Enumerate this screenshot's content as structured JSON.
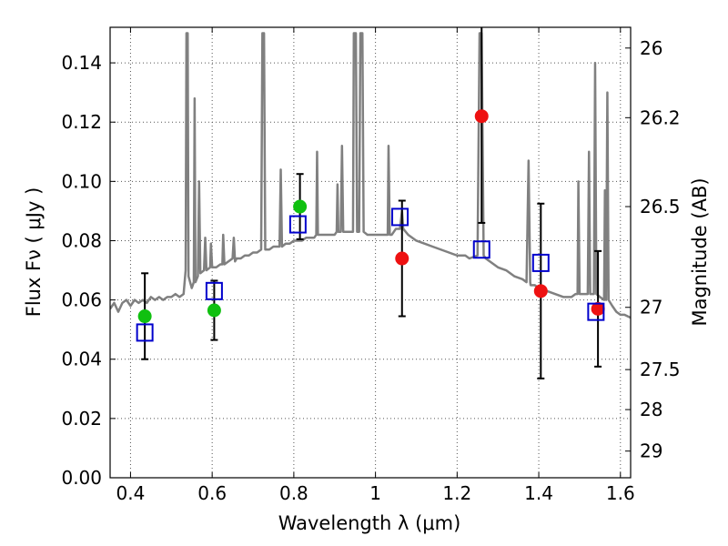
{
  "chart_data": {
    "type": "scatter",
    "title": "",
    "xlabel": "Wavelength  λ (μm)",
    "ylabel": "Flux  Fν  ( μJy )",
    "y2label": "Magnitude (AB)",
    "xlim": [
      0.35,
      1.625
    ],
    "ylim": [
      0.0,
      0.152
    ],
    "grid": true,
    "x_ticks": [
      0.4,
      0.6,
      0.8,
      1.0,
      1.2,
      1.4,
      1.6
    ],
    "x_tick_labels": [
      "0.4",
      "0.6",
      "0.8",
      "1",
      "1.2",
      "1.4",
      "1.6"
    ],
    "y_ticks": [
      0.0,
      0.02,
      0.04,
      0.06,
      0.08,
      0.1,
      0.12,
      0.14
    ],
    "y_tick_labels": [
      "0.00",
      "0.02",
      "0.04",
      "0.06",
      "0.08",
      "0.10",
      "0.12",
      "0.14"
    ],
    "y2_ticks": [
      {
        "label": "26",
        "flux": 0.145
      },
      {
        "label": "26.2",
        "flux": 0.1215
      },
      {
        "label": "26.5",
        "flux": 0.0915
      },
      {
        "label": "27",
        "flux": 0.0575
      },
      {
        "label": "27.5",
        "flux": 0.0365
      },
      {
        "label": "28",
        "flux": 0.023
      },
      {
        "label": "29",
        "flux": 0.009
      }
    ],
    "colors": {
      "model": "#808080",
      "green": "#10c010",
      "red": "#ee1111",
      "box": "#0000cc",
      "errorbar": "#000000",
      "grid": "#555555"
    },
    "series": [
      {
        "kind": "line",
        "color": "#808080",
        "points": [
          [
            0.35,
            0.057
          ],
          [
            0.36,
            0.059
          ],
          [
            0.37,
            0.056
          ],
          [
            0.38,
            0.059
          ],
          [
            0.39,
            0.06
          ],
          [
            0.4,
            0.058
          ],
          [
            0.41,
            0.06
          ],
          [
            0.42,
            0.059
          ],
          [
            0.43,
            0.06
          ],
          [
            0.44,
            0.059
          ],
          [
            0.45,
            0.061
          ],
          [
            0.46,
            0.06
          ],
          [
            0.47,
            0.061
          ],
          [
            0.48,
            0.06
          ],
          [
            0.49,
            0.061
          ],
          [
            0.5,
            0.061
          ],
          [
            0.51,
            0.062
          ],
          [
            0.52,
            0.061
          ],
          [
            0.53,
            0.062
          ],
          [
            0.535,
            0.07
          ],
          [
            0.537,
            0.15
          ],
          [
            0.54,
            0.15
          ],
          [
            0.542,
            0.068
          ],
          [
            0.55,
            0.064
          ],
          [
            0.555,
            0.066
          ],
          [
            0.557,
            0.128
          ],
          [
            0.559,
            0.066
          ],
          [
            0.565,
            0.068
          ],
          [
            0.568,
            0.1
          ],
          [
            0.571,
            0.069
          ],
          [
            0.58,
            0.07
          ],
          [
            0.583,
            0.081
          ],
          [
            0.586,
            0.07
          ],
          [
            0.595,
            0.071
          ],
          [
            0.597,
            0.079
          ],
          [
            0.6,
            0.071
          ],
          [
            0.61,
            0.071
          ],
          [
            0.62,
            0.072
          ],
          [
            0.625,
            0.072
          ],
          [
            0.627,
            0.082
          ],
          [
            0.63,
            0.072
          ],
          [
            0.64,
            0.073
          ],
          [
            0.65,
            0.074
          ],
          [
            0.653,
            0.081
          ],
          [
            0.656,
            0.073
          ],
          [
            0.66,
            0.074
          ],
          [
            0.67,
            0.074
          ],
          [
            0.68,
            0.075
          ],
          [
            0.69,
            0.075
          ],
          [
            0.7,
            0.076
          ],
          [
            0.71,
            0.076
          ],
          [
            0.72,
            0.077
          ],
          [
            0.723,
            0.15
          ],
          [
            0.727,
            0.15
          ],
          [
            0.73,
            0.077
          ],
          [
            0.74,
            0.077
          ],
          [
            0.75,
            0.078
          ],
          [
            0.76,
            0.078
          ],
          [
            0.765,
            0.078
          ],
          [
            0.768,
            0.104
          ],
          [
            0.771,
            0.078
          ],
          [
            0.78,
            0.079
          ],
          [
            0.79,
            0.079
          ],
          [
            0.8,
            0.08
          ],
          [
            0.81,
            0.08
          ],
          [
            0.82,
            0.08
          ],
          [
            0.83,
            0.081
          ],
          [
            0.84,
            0.081
          ],
          [
            0.85,
            0.081
          ],
          [
            0.855,
            0.082
          ],
          [
            0.857,
            0.11
          ],
          [
            0.859,
            0.082
          ],
          [
            0.87,
            0.082
          ],
          [
            0.88,
            0.082
          ],
          [
            0.89,
            0.082
          ],
          [
            0.9,
            0.082
          ],
          [
            0.905,
            0.083
          ],
          [
            0.907,
            0.099
          ],
          [
            0.909,
            0.083
          ],
          [
            0.91,
            0.083
          ],
          [
            0.915,
            0.083
          ],
          [
            0.918,
            0.112
          ],
          [
            0.921,
            0.083
          ],
          [
            0.93,
            0.083
          ],
          [
            0.94,
            0.083
          ],
          [
            0.945,
            0.083
          ],
          [
            0.947,
            0.15
          ],
          [
            0.952,
            0.15
          ],
          [
            0.955,
            0.083
          ],
          [
            0.96,
            0.083
          ],
          [
            0.963,
            0.15
          ],
          [
            0.968,
            0.15
          ],
          [
            0.971,
            0.083
          ],
          [
            0.98,
            0.082
          ],
          [
            0.99,
            0.082
          ],
          [
            1.0,
            0.082
          ],
          [
            1.01,
            0.082
          ],
          [
            1.02,
            0.082
          ],
          [
            1.03,
            0.082
          ],
          [
            1.032,
            0.112
          ],
          [
            1.035,
            0.082
          ],
          [
            1.04,
            0.082
          ],
          [
            1.05,
            0.084
          ],
          [
            1.06,
            0.084
          ],
          [
            1.065,
            0.09
          ],
          [
            1.068,
            0.084
          ],
          [
            1.08,
            0.082
          ],
          [
            1.09,
            0.081
          ],
          [
            1.1,
            0.08
          ],
          [
            1.12,
            0.079
          ],
          [
            1.14,
            0.078
          ],
          [
            1.16,
            0.077
          ],
          [
            1.18,
            0.076
          ],
          [
            1.2,
            0.075
          ],
          [
            1.22,
            0.075
          ],
          [
            1.23,
            0.074
          ],
          [
            1.25,
            0.075
          ],
          [
            1.255,
            0.15
          ],
          [
            1.26,
            0.15
          ],
          [
            1.265,
            0.075
          ],
          [
            1.27,
            0.074
          ],
          [
            1.28,
            0.073
          ],
          [
            1.3,
            0.071
          ],
          [
            1.32,
            0.07
          ],
          [
            1.34,
            0.068
          ],
          [
            1.36,
            0.067
          ],
          [
            1.37,
            0.066
          ],
          [
            1.375,
            0.107
          ],
          [
            1.379,
            0.066
          ],
          [
            1.38,
            0.065
          ],
          [
            1.39,
            0.065
          ],
          [
            1.4,
            0.064
          ],
          [
            1.42,
            0.063
          ],
          [
            1.44,
            0.062
          ],
          [
            1.46,
            0.061
          ],
          [
            1.48,
            0.061
          ],
          [
            1.49,
            0.062
          ],
          [
            1.495,
            0.062
          ],
          [
            1.497,
            0.1
          ],
          [
            1.5,
            0.062
          ],
          [
            1.51,
            0.062
          ],
          [
            1.52,
            0.062
          ],
          [
            1.523,
            0.11
          ],
          [
            1.526,
            0.062
          ],
          [
            1.53,
            0.062
          ],
          [
            1.535,
            0.062
          ],
          [
            1.538,
            0.14
          ],
          [
            1.541,
            0.062
          ],
          [
            1.55,
            0.061
          ],
          [
            1.56,
            0.06
          ],
          [
            1.562,
            0.097
          ],
          [
            1.565,
            0.06
          ],
          [
            1.568,
            0.13
          ],
          [
            1.571,
            0.06
          ],
          [
            1.58,
            0.058
          ],
          [
            1.59,
            0.056
          ],
          [
            1.6,
            0.055
          ],
          [
            1.61,
            0.055
          ],
          [
            1.625,
            0.054
          ]
        ]
      },
      {
        "kind": "points",
        "marker": "circle",
        "color": "#10c010",
        "points": [
          {
            "x": 0.435,
            "y": 0.0545,
            "err": 0.0145
          },
          {
            "x": 0.605,
            "y": 0.0565,
            "err": 0.01
          },
          {
            "x": 0.815,
            "y": 0.0915,
            "err": 0.011
          }
        ]
      },
      {
        "kind": "points",
        "marker": "circle",
        "color": "#ee1111",
        "points": [
          {
            "x": 1.065,
            "y": 0.074,
            "err": 0.0195
          },
          {
            "x": 1.26,
            "y": 0.122,
            "err": 0.036
          },
          {
            "x": 1.405,
            "y": 0.063,
            "err": 0.0295
          },
          {
            "x": 1.545,
            "y": 0.057,
            "err": 0.0195
          }
        ]
      },
      {
        "kind": "points",
        "marker": "square",
        "color": "#0000cc",
        "points": [
          {
            "x": 0.435,
            "y": 0.049
          },
          {
            "x": 0.605,
            "y": 0.063
          },
          {
            "x": 0.81,
            "y": 0.0855
          },
          {
            "x": 1.06,
            "y": 0.088
          },
          {
            "x": 1.26,
            "y": 0.077
          },
          {
            "x": 1.405,
            "y": 0.0725
          },
          {
            "x": 1.54,
            "y": 0.056
          }
        ]
      }
    ]
  }
}
